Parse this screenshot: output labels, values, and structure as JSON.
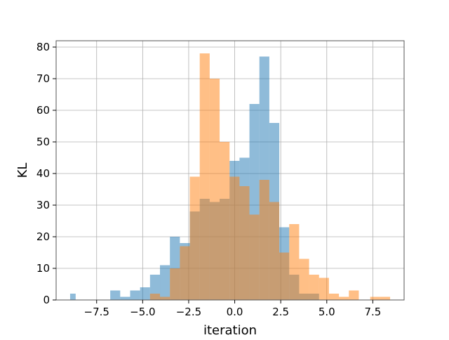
{
  "chart_data": {
    "type": "bar",
    "subtype": "overlapping-histogram",
    "title": "",
    "xlabel": "iteration",
    "ylabel": "KL",
    "xlim": [
      -9.7,
      9.2
    ],
    "ylim": [
      0,
      82
    ],
    "xticks": [
      -7.5,
      -5.0,
      -2.5,
      0.0,
      2.5,
      5.0,
      7.5
    ],
    "xtick_labels": [
      "−7.5",
      "−5.0",
      "−2.5",
      "0.0",
      "2.5",
      "5.0",
      "7.5"
    ],
    "yticks": [
      0,
      10,
      20,
      30,
      40,
      50,
      60,
      70,
      80
    ],
    "ytick_labels": [
      "0",
      "10",
      "20",
      "30",
      "40",
      "50",
      "60",
      "70",
      "80"
    ],
    "grid": true,
    "legend": "none",
    "series": [
      {
        "color": "#1f77b4",
        "alpha": 0.5,
        "bins": [
          {
            "x0": -8.94,
            "x1": -8.64,
            "count": 2
          },
          {
            "x0": -6.76,
            "x1": -6.22,
            "count": 3
          },
          {
            "x0": -6.22,
            "x1": -5.68,
            "count": 1
          },
          {
            "x0": -5.68,
            "x1": -5.14,
            "count": 3
          },
          {
            "x0": -5.14,
            "x1": -4.6,
            "count": 4
          },
          {
            "x0": -4.6,
            "x1": -4.06,
            "count": 8
          },
          {
            "x0": -4.06,
            "x1": -3.52,
            "count": 11
          },
          {
            "x0": -3.52,
            "x1": -2.98,
            "count": 20
          },
          {
            "x0": -2.98,
            "x1": -2.44,
            "count": 18
          },
          {
            "x0": -2.44,
            "x1": -1.9,
            "count": 28
          },
          {
            "x0": -1.9,
            "x1": -1.36,
            "count": 32
          },
          {
            "x0": -1.36,
            "x1": -0.82,
            "count": 31
          },
          {
            "x0": -0.82,
            "x1": -0.28,
            "count": 32
          },
          {
            "x0": -0.28,
            "x1": 0.26,
            "count": 44
          },
          {
            "x0": 0.26,
            "x1": 0.8,
            "count": 45
          },
          {
            "x0": 0.8,
            "x1": 1.34,
            "count": 62
          },
          {
            "x0": 1.34,
            "x1": 1.88,
            "count": 77
          },
          {
            "x0": 1.88,
            "x1": 2.42,
            "count": 56
          },
          {
            "x0": 2.42,
            "x1": 2.96,
            "count": 23
          },
          {
            "x0": 2.96,
            "x1": 3.5,
            "count": 8
          },
          {
            "x0": 3.5,
            "x1": 4.04,
            "count": 2
          },
          {
            "x0": 4.04,
            "x1": 4.58,
            "count": 2
          }
        ]
      },
      {
        "color": "#ff7f0e",
        "alpha": 0.5,
        "bins": [
          {
            "x0": -4.6,
            "x1": -4.06,
            "count": 2
          },
          {
            "x0": -4.06,
            "x1": -3.52,
            "count": 1
          },
          {
            "x0": -3.52,
            "x1": -2.98,
            "count": 10
          },
          {
            "x0": -2.98,
            "x1": -2.44,
            "count": 17
          },
          {
            "x0": -2.44,
            "x1": -1.9,
            "count": 39
          },
          {
            "x0": -1.9,
            "x1": -1.36,
            "count": 78
          },
          {
            "x0": -1.36,
            "x1": -0.82,
            "count": 70
          },
          {
            "x0": -0.82,
            "x1": -0.28,
            "count": 50
          },
          {
            "x0": -0.28,
            "x1": 0.26,
            "count": 39
          },
          {
            "x0": 0.26,
            "x1": 0.8,
            "count": 36
          },
          {
            "x0": 0.8,
            "x1": 1.34,
            "count": 27
          },
          {
            "x0": 1.34,
            "x1": 1.88,
            "count": 38
          },
          {
            "x0": 1.88,
            "x1": 2.42,
            "count": 31
          },
          {
            "x0": 2.42,
            "x1": 2.96,
            "count": 15
          },
          {
            "x0": 2.96,
            "x1": 3.5,
            "count": 24
          },
          {
            "x0": 3.5,
            "x1": 4.04,
            "count": 13
          },
          {
            "x0": 4.04,
            "x1": 4.58,
            "count": 8
          },
          {
            "x0": 4.58,
            "x1": 5.12,
            "count": 7
          },
          {
            "x0": 5.12,
            "x1": 5.66,
            "count": 2
          },
          {
            "x0": 5.66,
            "x1": 6.2,
            "count": 1
          },
          {
            "x0": 6.2,
            "x1": 6.74,
            "count": 3
          },
          {
            "x0": 7.36,
            "x1": 7.9,
            "count": 1
          },
          {
            "x0": 7.9,
            "x1": 8.44,
            "count": 1
          }
        ]
      }
    ]
  }
}
